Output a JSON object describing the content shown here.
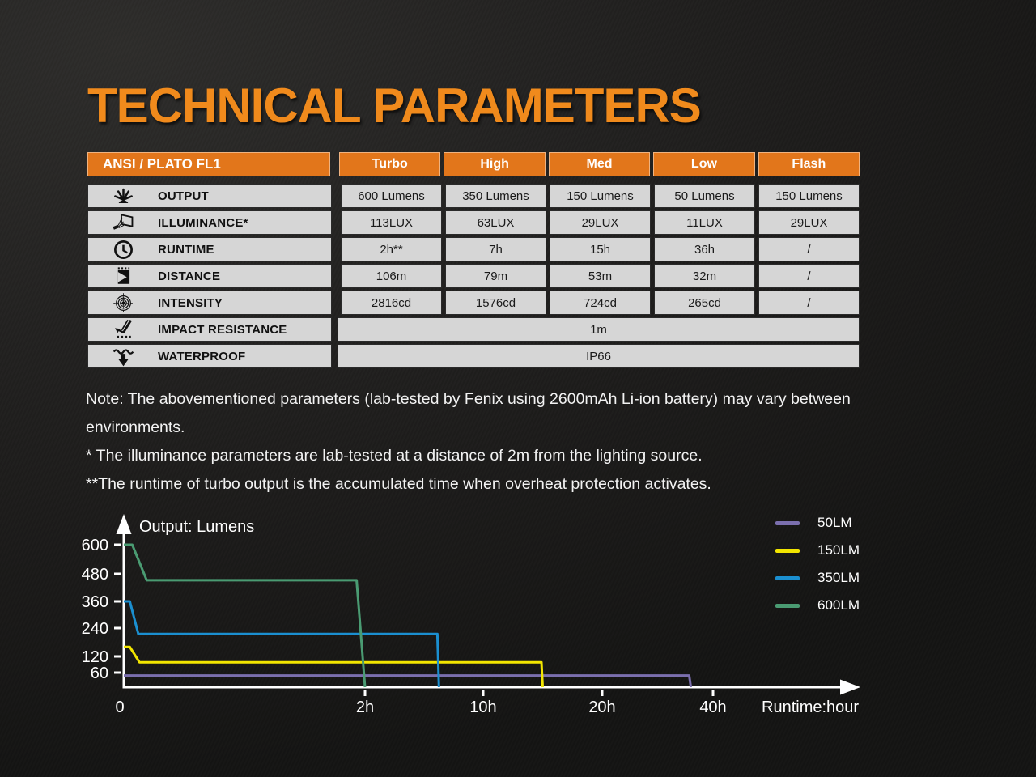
{
  "page": {
    "title": "TECHNICAL PARAMETERS"
  },
  "colors": {
    "title_orange": "#F08A1C",
    "header_orange": "#E2761B",
    "cell_gray": "#D6D6D6",
    "series_50lm": "#7B6FAE",
    "series_150lm": "#F2E500",
    "series_350lm": "#1B8FD0",
    "series_600lm": "#4A9B72"
  },
  "table": {
    "header": {
      "first": "ANSI / PLATO FL1",
      "modes": [
        "Turbo",
        "High",
        "Med",
        "Low",
        "Flash"
      ]
    },
    "rows": [
      {
        "icon": "output-burst-icon",
        "label": "OUTPUT",
        "values": [
          "600 Lumens",
          "350 Lumens",
          "150 Lumens",
          "50 Lumens",
          "150 Lumens"
        ]
      },
      {
        "icon": "illuminance-icon",
        "label": "ILLUMINANCE*",
        "values": [
          "113LUX",
          "63LUX",
          "29LUX",
          "11LUX",
          "29LUX"
        ]
      },
      {
        "icon": "runtime-clock-icon",
        "label": "RUNTIME",
        "values": [
          "2h**",
          "7h",
          "15h",
          "36h",
          "/"
        ]
      },
      {
        "icon": "distance-icon",
        "label": "DISTANCE",
        "values": [
          "106m",
          "79m",
          "53m",
          "32m",
          "/"
        ]
      },
      {
        "icon": "intensity-icon",
        "label": "INTENSITY",
        "values": [
          "2816cd",
          "1576cd",
          "724cd",
          "265cd",
          "/"
        ]
      },
      {
        "icon": "impact-resistance-icon",
        "label": "IMPACT RESISTANCE",
        "span": "1m"
      },
      {
        "icon": "waterproof-icon",
        "label": "WATERPROOF",
        "span": "IP66"
      }
    ]
  },
  "notes": [
    "Note: The abovementioned parameters (lab-tested by Fenix using 2600mAh Li-ion battery) may vary between environments.",
    "* The illuminance parameters are lab-tested at a distance of 2m from the lighting source.",
    "**The runtime of turbo output is the accumulated time when overheat protection activates."
  ],
  "chart_data": {
    "type": "line",
    "title": "Output: Lumens",
    "xlabel": "Runtime:hour",
    "ylabel": "",
    "grid": false,
    "legend_position": "top-right",
    "x_ticks": [
      {
        "label": "0",
        "hours": 0
      },
      {
        "label": "2h",
        "hours": 2
      },
      {
        "label": "10h",
        "hours": 10
      },
      {
        "label": "20h",
        "hours": 20
      },
      {
        "label": "40h",
        "hours": 40
      }
    ],
    "y_ticks": [
      600,
      480,
      360,
      240,
      120,
      60
    ],
    "ylim": [
      0,
      640
    ],
    "x_axis_note": "nonlinear compressed hour scale",
    "series": [
      {
        "name": "50LM",
        "color": "#7B6FAE",
        "points": [
          [
            0,
            48
          ],
          [
            35.7,
            48
          ],
          [
            36,
            0
          ]
        ]
      },
      {
        "name": "150LM",
        "color": "#F2E500",
        "points": [
          [
            0,
            160
          ],
          [
            0.05,
            160
          ],
          [
            0.13,
            98
          ],
          [
            14.9,
            98
          ],
          [
            15,
            0
          ]
        ]
      },
      {
        "name": "350LM",
        "color": "#1B8FD0",
        "points": [
          [
            0,
            360
          ],
          [
            0.05,
            360
          ],
          [
            0.12,
            215
          ],
          [
            6.9,
            215
          ],
          [
            7,
            0
          ]
        ]
      },
      {
        "name": "600LM",
        "color": "#4A9B72",
        "points": [
          [
            0,
            600
          ],
          [
            0.07,
            600
          ],
          [
            0.19,
            452
          ],
          [
            1.93,
            452
          ],
          [
            2,
            0
          ]
        ]
      }
    ],
    "legend": [
      {
        "label": "50LM",
        "color": "#7B6FAE"
      },
      {
        "label": "150LM",
        "color": "#F2E500"
      },
      {
        "label": "350LM",
        "color": "#1B8FD0"
      },
      {
        "label": "600LM",
        "color": "#4A9B72"
      }
    ]
  }
}
